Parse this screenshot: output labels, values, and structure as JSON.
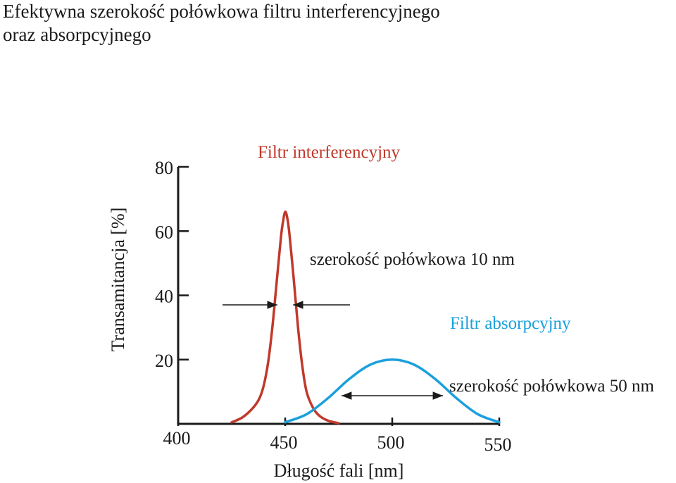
{
  "title_lines": [
    "Efektywna szerokość połówkowa filtru interferencyjnego",
    "oraz absorpcyjnego"
  ],
  "colors": {
    "interference": "#c0392b",
    "absorption": "#1aa0dc",
    "axis": "#1a1a1a"
  },
  "chart_data": {
    "type": "line",
    "xlabel": "Długość fali [nm]",
    "ylabel": "Transamitancja [%]",
    "x_ticks": [
      "400",
      "450",
      "500",
      "550"
    ],
    "y_ticks": [
      "20",
      "40",
      "60",
      "80"
    ],
    "xlim": [
      400,
      550
    ],
    "ylim": [
      0,
      80
    ],
    "grid": false,
    "series": [
      {
        "name": "Filtr interferencyjny",
        "color": "#c0392b",
        "x": [
          425,
          430,
          435,
          438,
          440,
          442,
          444,
          446,
          448,
          449,
          450,
          451,
          452,
          454,
          456,
          458,
          460,
          463,
          466,
          470,
          475
        ],
        "y": [
          0.5,
          2,
          5,
          8,
          12,
          19,
          30,
          44,
          58,
          63,
          66,
          64,
          59,
          45,
          30,
          18,
          10,
          5,
          2.5,
          1,
          0.2
        ]
      },
      {
        "name": "Filtr absorpcyjny",
        "color": "#1aa0dc",
        "x": [
          450,
          460,
          470,
          480,
          490,
          500,
          510,
          520,
          530,
          540,
          550
        ],
        "y": [
          0.5,
          3,
          8,
          14,
          18.5,
          20,
          18.5,
          14,
          8,
          3,
          0.5
        ]
      }
    ],
    "annotations": [
      {
        "text": "szerokość połówkowa 10 nm",
        "x_from": 445,
        "x_to": 455,
        "y": 36
      },
      {
        "text": "szerokość połówkowa 50 nm",
        "x_from": 475,
        "x_to": 525,
        "y": 8.5
      }
    ]
  }
}
